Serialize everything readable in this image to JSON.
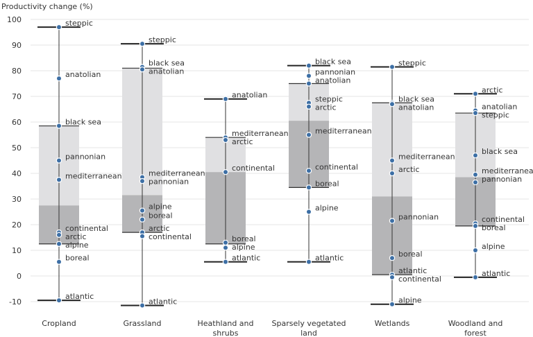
{
  "chart_data": {
    "type": "box",
    "ylabel": "Productivity change (%)",
    "ylim": [
      -10,
      100
    ],
    "yticks": [
      -10,
      0,
      10,
      20,
      30,
      40,
      50,
      60,
      70,
      80,
      90,
      100
    ],
    "colors": {
      "upper_box": "#e0e0e2",
      "lower_box": "#b5b5b7",
      "point": "#3d6fa5",
      "whisker": "#333333"
    },
    "categories": [
      {
        "name": "Cropland",
        "min": -9.5,
        "q1": 12.5,
        "median": 27.5,
        "q3": 58.5,
        "max": 97,
        "points": [
          {
            "label": "steppic",
            "value": 97
          },
          {
            "label": "anatolian",
            "value": 77
          },
          {
            "label": "black sea",
            "value": 58.5
          },
          {
            "label": "pannonian",
            "value": 45
          },
          {
            "label": "mediterranean",
            "value": 37.5
          },
          {
            "label": "continental",
            "value": 17
          },
          {
            "label": "arctic",
            "value": 16
          },
          {
            "label": "alpine",
            "value": 12.5
          },
          {
            "label": "boreal",
            "value": 5.5
          },
          {
            "label": "atlantic",
            "value": -9.5
          }
        ]
      },
      {
        "name": "Grassland",
        "min": -11.5,
        "q1": 17,
        "median": 31.5,
        "q3": 81,
        "max": 90.5,
        "points": [
          {
            "label": "steppic",
            "value": 90.5
          },
          {
            "label": "black sea",
            "value": 81.5
          },
          {
            "label": "anatolian",
            "value": 80.5
          },
          {
            "label": "mediterranean",
            "value": 38.5
          },
          {
            "label": "pannonian",
            "value": 37
          },
          {
            "label": "alpine",
            "value": 25.5
          },
          {
            "label": "boreal",
            "value": 22
          },
          {
            "label": "arctic",
            "value": 17
          },
          {
            "label": "continental",
            "value": 15.5
          },
          {
            "label": "atlantic",
            "value": -11.5
          }
        ]
      },
      {
        "name": "Heathland and shrubs",
        "min": 5.5,
        "q1": 12.5,
        "median": 40.5,
        "q3": 54,
        "max": 69,
        "points": [
          {
            "label": "anatolian",
            "value": 69
          },
          {
            "label": "mediterranean",
            "value": 54
          },
          {
            "label": "arctic",
            "value": 53
          },
          {
            "label": "continental",
            "value": 40.5
          },
          {
            "label": "boreal",
            "value": 13
          },
          {
            "label": "alpine",
            "value": 11
          },
          {
            "label": "atlantic",
            "value": 5.5
          }
        ]
      },
      {
        "name": "Sparsely vegetated land",
        "min": 5.5,
        "q1": 34.5,
        "median": 60.5,
        "q3": 75,
        "max": 82,
        "points": [
          {
            "label": "black sea",
            "value": 82
          },
          {
            "label": "pannonian",
            "value": 78
          },
          {
            "label": "anatolian",
            "value": 75
          },
          {
            "label": "steppic",
            "value": 67.5
          },
          {
            "label": "arctic",
            "value": 66
          },
          {
            "label": "mediterranean",
            "value": 55
          },
          {
            "label": "continental",
            "value": 41
          },
          {
            "label": "boreal",
            "value": 34.5
          },
          {
            "label": "alpine",
            "value": 25
          },
          {
            "label": "atlantic",
            "value": 5.5
          }
        ]
      },
      {
        "name": "Wetlands",
        "min": -11,
        "q1": 0.5,
        "median": 31,
        "q3": 67.5,
        "max": 81.5,
        "points": [
          {
            "label": "steppic",
            "value": 81.5
          },
          {
            "label": "black sea",
            "value": 67.5
          },
          {
            "label": "anatolian",
            "value": 67
          },
          {
            "label": "mediterranean",
            "value": 45
          },
          {
            "label": "arctic",
            "value": 40
          },
          {
            "label": "pannonian",
            "value": 21.5
          },
          {
            "label": "boreal",
            "value": 7
          },
          {
            "label": "atlantic",
            "value": 0.5
          },
          {
            "label": "continental",
            "value": -0.5
          },
          {
            "label": "alpine",
            "value": -11
          }
        ]
      },
      {
        "name": "Woodland and forest",
        "min": -0.5,
        "q1": 19.5,
        "median": 38.5,
        "q3": 63.5,
        "max": 71,
        "points": [
          {
            "label": "arctic",
            "value": 71
          },
          {
            "label": "anatolian",
            "value": 64.5
          },
          {
            "label": "steppic",
            "value": 63.5
          },
          {
            "label": "black sea",
            "value": 47
          },
          {
            "label": "mediterranean",
            "value": 39.5
          },
          {
            "label": "pannonian",
            "value": 36.5
          },
          {
            "label": "continental",
            "value": 20.5
          },
          {
            "label": "boreal",
            "value": 19.5
          },
          {
            "label": "alpine",
            "value": 10
          },
          {
            "label": "atlantic",
            "value": -0.5
          }
        ]
      }
    ]
  }
}
